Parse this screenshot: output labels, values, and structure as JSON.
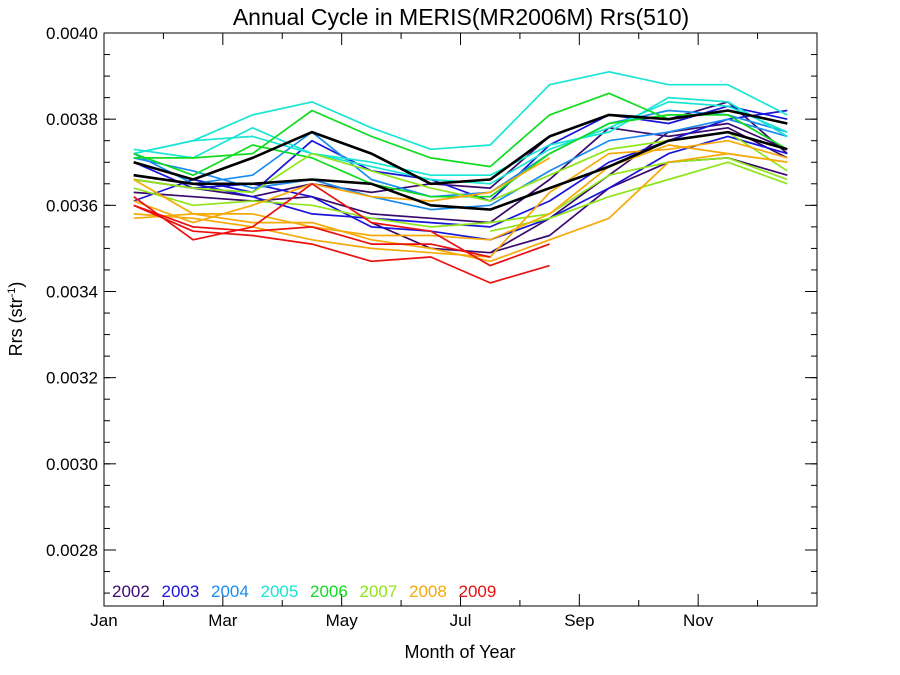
{
  "chart_data": {
    "type": "line",
    "title": "Annual Cycle in MERIS(MR2006M) Rrs(510)",
    "xlabel": "Month of Year",
    "ylabel_base": "Rrs (str",
    "ylabel_sup": "-1",
    "ylabel_close": ")",
    "xlim": [
      0,
      12
    ],
    "ylim": [
      0.00267,
      0.004
    ],
    "x_ticks": [
      {
        "value": 0,
        "label": "Jan"
      },
      {
        "value": 2,
        "label": "Mar"
      },
      {
        "value": 4,
        "label": "May"
      },
      {
        "value": 6,
        "label": "Jul"
      },
      {
        "value": 8,
        "label": "Sep"
      },
      {
        "value": 10,
        "label": "Nov"
      }
    ],
    "y_ticks": [
      {
        "value": 0.0028,
        "label": "0.0028"
      },
      {
        "value": 0.003,
        "label": "0.0030"
      },
      {
        "value": 0.0032,
        "label": "0.0032"
      },
      {
        "value": 0.0034,
        "label": "0.0034"
      },
      {
        "value": 0.0036,
        "label": "0.0036"
      },
      {
        "value": 0.0038,
        "label": "0.0038"
      },
      {
        "value": 0.004,
        "label": "0.0040"
      }
    ],
    "legend": {
      "placement": "bottom-left",
      "entries": [
        {
          "label": "2002",
          "color": "#3a0a6e"
        },
        {
          "label": "2003",
          "color": "#1a14d8"
        },
        {
          "label": "2004",
          "color": "#1a8cf0"
        },
        {
          "label": "2005",
          "color": "#18e6d4"
        },
        {
          "label": "2006",
          "color": "#10dc20"
        },
        {
          "label": "2007",
          "color": "#8ee61a"
        },
        {
          "label": "2008",
          "color": "#f5aa0a"
        },
        {
          "label": "2009",
          "color": "#eb1010"
        }
      ]
    },
    "x": [
      0.5,
      1.5,
      2.5,
      3.5,
      4.5,
      5.5,
      6.5,
      7.5,
      8.5,
      9.5,
      10.5,
      11.5
    ],
    "series": [
      {
        "color": "#3a0a6e",
        "values": [
          0.00366,
          0.00364,
          0.00362,
          0.00365,
          0.00363,
          0.00365,
          0.00364,
          0.00376,
          0.00381,
          0.0038,
          0.00384,
          0.00372
        ]
      },
      {
        "color": "#3a0a6e",
        "values": [
          0.00363,
          0.00362,
          0.00361,
          0.00362,
          0.00358,
          0.00357,
          0.00356,
          0.00366,
          0.00378,
          0.00376,
          0.00378,
          0.00371
        ]
      },
      {
        "color": "#3a0a6e",
        "values": [
          null,
          null,
          null,
          null,
          0.00356,
          0.0035,
          0.00349,
          0.00357,
          0.00367,
          0.00377,
          0.00379,
          0.00373
        ]
      },
      {
        "color": "#3a0a6e",
        "values": [
          null,
          null,
          null,
          null,
          null,
          null,
          0.00349,
          0.00353,
          0.00364,
          0.0037,
          0.00371,
          0.00367
        ]
      },
      {
        "color": "#1a14d8",
        "values": [
          0.00361,
          0.00366,
          0.00363,
          0.00375,
          0.00368,
          0.00366,
          0.00361,
          0.00374,
          0.00381,
          0.00379,
          0.00383,
          0.0038
        ]
      },
      {
        "color": "#1a14d8",
        "values": [
          0.0037,
          0.00364,
          0.00365,
          0.00362,
          0.00355,
          0.00354,
          0.00352,
          0.00357,
          0.00364,
          0.00372,
          0.00376,
          0.00372
        ]
      },
      {
        "color": "#1a14d8",
        "values": [
          0.00367,
          0.00365,
          0.00362,
          0.00358,
          0.00357,
          0.00356,
          0.00355,
          0.00361,
          0.0037,
          0.00375,
          0.0038,
          0.00382
        ]
      },
      {
        "color": "#1a8cf0",
        "values": [
          0.00372,
          0.00365,
          0.00367,
          0.00377,
          0.00366,
          0.00362,
          0.00363,
          0.00372,
          0.00379,
          0.00382,
          0.00381,
          0.00377
        ]
      },
      {
        "color": "#1a8cf0",
        "values": [
          0.00371,
          0.00368,
          0.00364,
          0.00366,
          0.00362,
          0.00359,
          0.0036,
          0.00368,
          0.00375,
          0.00377,
          0.0038,
          0.00376
        ]
      },
      {
        "color": "#18e6d4",
        "values": [
          0.00372,
          0.00375,
          0.00381,
          0.00384,
          0.00378,
          0.00373,
          0.00374,
          0.00388,
          0.00391,
          0.00388,
          0.00388,
          0.00381
        ]
      },
      {
        "color": "#18e6d4",
        "values": [
          0.00373,
          0.00371,
          0.00378,
          0.00372,
          0.0037,
          0.00367,
          0.00367,
          0.00374,
          0.00377,
          0.00385,
          0.00384,
          0.00376
        ]
      },
      {
        "color": "#18e6d4",
        "values": [
          0.00372,
          0.00375,
          0.00376,
          0.00372,
          0.00369,
          0.00366,
          0.00365,
          0.00373,
          0.00378,
          0.00384,
          0.00383,
          0.00377
        ]
      },
      {
        "color": "#10dc20",
        "values": [
          0.00371,
          0.00371,
          0.00372,
          0.00382,
          0.00376,
          0.00371,
          0.00369,
          0.00381,
          0.00386,
          0.0038,
          0.00382,
          0.00379
        ]
      },
      {
        "color": "#10dc20",
        "values": [
          0.00372,
          0.00367,
          0.00374,
          0.00371,
          0.00365,
          0.00362,
          0.00362,
          0.00372,
          0.00379,
          0.00381,
          0.00381,
          0.00373
        ]
      },
      {
        "color": "#8ee61a",
        "values": [
          0.00366,
          0.00364,
          0.00363,
          0.00372,
          0.00368,
          0.00364,
          0.00361,
          0.00367,
          0.00373,
          0.00375,
          0.00377,
          0.00368
        ]
      },
      {
        "color": "#8ee61a",
        "values": [
          0.00364,
          0.0036,
          0.00361,
          0.0036,
          0.00357,
          0.00355,
          0.00356,
          0.00358,
          0.00367,
          0.0037,
          0.00371,
          0.00366
        ]
      },
      {
        "color": "#8ee61a",
        "values": [
          null,
          null,
          null,
          null,
          null,
          null,
          0.00354,
          0.00357,
          0.00362,
          0.00366,
          0.0037,
          0.00365
        ]
      },
      {
        "color": "#f5aa0a",
        "values": [
          0.00366,
          0.00358,
          0.00358,
          0.00355,
          0.00353,
          0.00353,
          0.00352,
          0.00358,
          0.00369,
          0.00374,
          0.00372,
          0.0037
        ]
      },
      {
        "color": "#f5aa0a",
        "values": [
          0.00357,
          0.00358,
          0.00356,
          0.00356,
          0.00352,
          0.0035,
          0.00347,
          0.00352,
          0.00357,
          0.0037,
          0.00372,
          0.0037
        ]
      },
      {
        "color": "#f5aa0a",
        "values": [
          0.00358,
          0.00357,
          0.00355,
          0.00352,
          0.0035,
          0.00349,
          0.00348,
          0.00363,
          0.00372,
          0.00373,
          0.00375,
          0.00371
        ]
      },
      {
        "color": "#f5aa0a",
        "values": [
          0.00361,
          0.00356,
          0.0036,
          0.00365,
          0.00362,
          0.00361,
          0.00363,
          0.00371,
          null,
          null,
          null,
          null
        ]
      },
      {
        "color": "#eb1010",
        "values": [
          0.00362,
          0.00352,
          0.00355,
          0.00365,
          0.00356,
          0.00354,
          0.00346,
          0.00351,
          null,
          null,
          null,
          null
        ]
      },
      {
        "color": "#eb1010",
        "values": [
          0.0036,
          0.00355,
          0.00354,
          0.00355,
          0.00351,
          0.00351,
          0.00348,
          null,
          null,
          null,
          null,
          null
        ]
      },
      {
        "color": "#eb1010",
        "values": [
          0.0036,
          0.00354,
          0.00353,
          0.00351,
          0.00347,
          0.00348,
          0.00342,
          0.00346,
          null,
          null,
          null,
          null
        ]
      },
      {
        "color": "#000000",
        "width": 2.6,
        "values": [
          0.00367,
          0.00365,
          0.00365,
          0.00366,
          0.00365,
          0.0036,
          0.00359,
          0.00364,
          0.00369,
          0.00375,
          0.00377,
          0.00373
        ]
      },
      {
        "color": "#000000",
        "width": 2.6,
        "values": [
          0.0037,
          0.00366,
          0.00371,
          0.00377,
          0.00372,
          0.00365,
          0.00366,
          0.00376,
          0.00381,
          0.0038,
          0.00382,
          0.00379
        ]
      }
    ]
  }
}
